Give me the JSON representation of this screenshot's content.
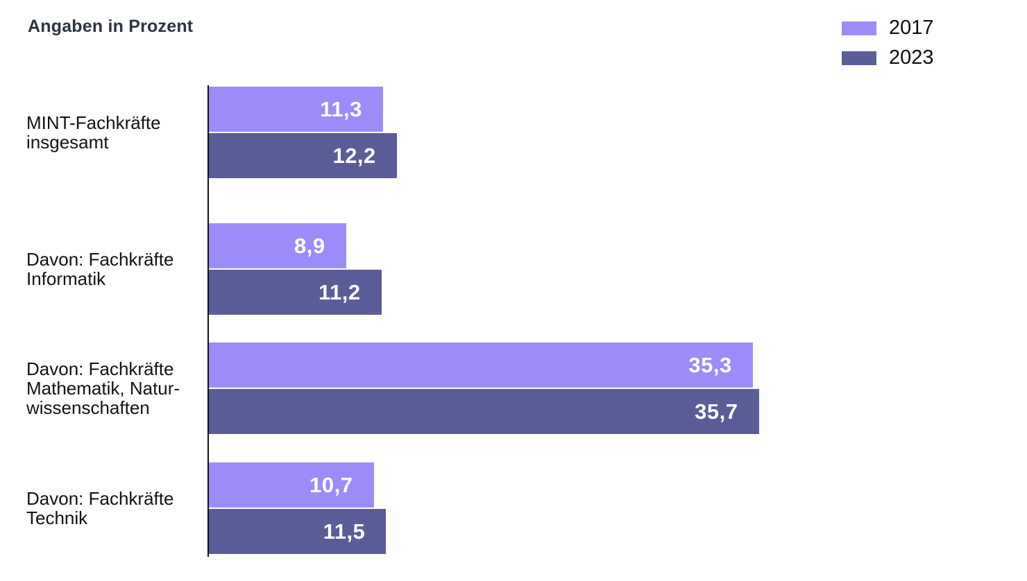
{
  "header": {
    "title": "Angaben in Prozent"
  },
  "chart_data": {
    "type": "bar",
    "orientation": "horizontal",
    "title": "Angaben in Prozent",
    "units": "Prozent",
    "categories": [
      "MINT-Fachkräfte insgesamt",
      "Davon: Fachkräfte Informatik",
      "Davon: Fachkräfte Mathematik, Naturwissenschaften",
      "Davon: Fachkräfte Technik"
    ],
    "category_label_lines": [
      [
        "MINT-Fachkräfte",
        "insgesamt"
      ],
      [
        "Davon: Fachkräfte",
        "Informatik"
      ],
      [
        "Davon: Fachkräfte",
        "Mathematik, Natur-",
        "wissenschaften"
      ],
      [
        "Davon: Fachkräfte",
        "Technik"
      ]
    ],
    "series": [
      {
        "name": "2017",
        "color": "#9b8cfa",
        "values": [
          11.3,
          8.9,
          35.3,
          10.7
        ],
        "labels": [
          "11,3",
          "8,9",
          "35,3",
          "10,7"
        ]
      },
      {
        "name": "2023",
        "color": "#5a5d97",
        "values": [
          12.2,
          11.2,
          35.7,
          11.5
        ],
        "labels": [
          "12,2",
          "11,2",
          "35,7",
          "11,5"
        ]
      }
    ],
    "xlim": [
      0,
      53
    ],
    "grid": false,
    "legend_position": "top-right",
    "value_labels": "inside-right",
    "axis_line_color": "#101010",
    "value_label_color": "#ffffff"
  }
}
